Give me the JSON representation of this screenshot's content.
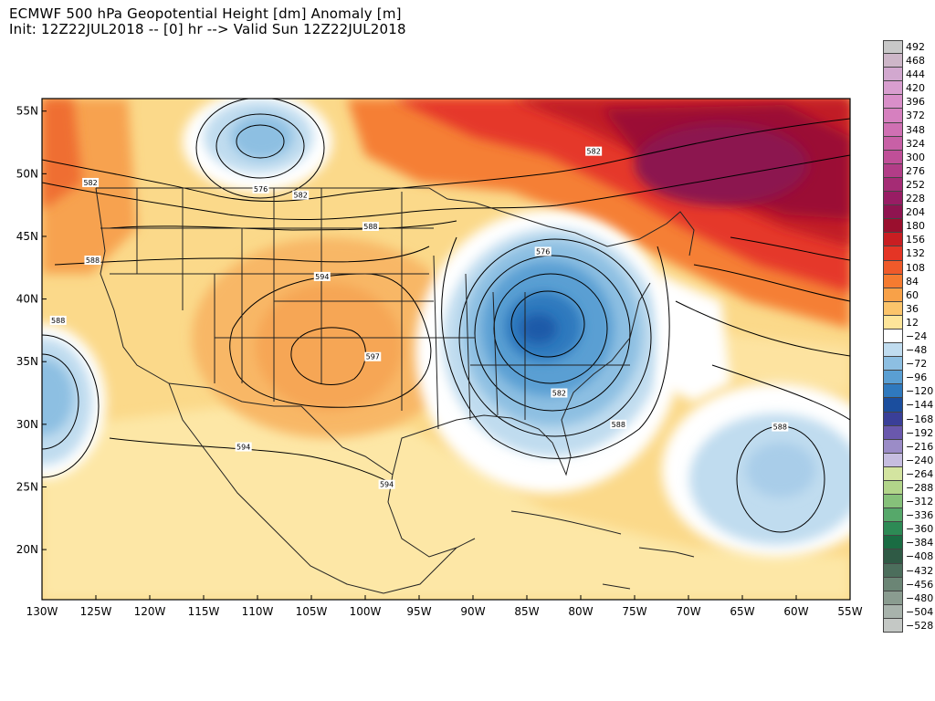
{
  "title": {
    "line1": "ECMWF 500 hPa Geopotential Height [dm] Anomaly [m]",
    "line2": "Init: 12Z22JUL2018 -- [0] hr --> Valid Sun 12Z22JUL2018"
  },
  "map": {
    "lon_range": [
      -130,
      -55
    ],
    "lat_range": [
      16,
      56
    ],
    "lon_ticks": [
      {
        "v": -130,
        "label": "130W"
      },
      {
        "v": -125,
        "label": "125W"
      },
      {
        "v": -120,
        "label": "120W"
      },
      {
        "v": -115,
        "label": "115W"
      },
      {
        "v": -110,
        "label": "110W"
      },
      {
        "v": -105,
        "label": "105W"
      },
      {
        "v": -100,
        "label": "100W"
      },
      {
        "v": -95,
        "label": "95W"
      },
      {
        "v": -90,
        "label": "90W"
      },
      {
        "v": -85,
        "label": "85W"
      },
      {
        "v": -80,
        "label": "80W"
      },
      {
        "v": -75,
        "label": "75W"
      },
      {
        "v": -70,
        "label": "70W"
      },
      {
        "v": -65,
        "label": "65W"
      },
      {
        "v": -60,
        "label": "60W"
      },
      {
        "v": -55,
        "label": "55W"
      }
    ],
    "lat_ticks": [
      {
        "v": 20,
        "label": "20N"
      },
      {
        "v": 25,
        "label": "25N"
      },
      {
        "v": 30,
        "label": "30N"
      },
      {
        "v": 35,
        "label": "35N"
      },
      {
        "v": 40,
        "label": "40N"
      },
      {
        "v": 45,
        "label": "45N"
      },
      {
        "v": 50,
        "label": "50N"
      },
      {
        "v": 55,
        "label": "55N"
      }
    ],
    "contour_labels": [
      {
        "text": "582",
        "lon": -125.5,
        "lat": 49.3
      },
      {
        "text": "576",
        "lon": -109.7,
        "lat": 48.8
      },
      {
        "text": "582",
        "lon": -106.0,
        "lat": 48.3
      },
      {
        "text": "588",
        "lon": -99.5,
        "lat": 45.8
      },
      {
        "text": "588",
        "lon": -125.3,
        "lat": 43.1
      },
      {
        "text": "594",
        "lon": -104.0,
        "lat": 41.8
      },
      {
        "text": "588",
        "lon": -128.5,
        "lat": 38.3
      },
      {
        "text": "597",
        "lon": -99.3,
        "lat": 35.4
      },
      {
        "text": "576",
        "lon": -83.5,
        "lat": 43.8
      },
      {
        "text": "582",
        "lon": -82.0,
        "lat": 32.5
      },
      {
        "text": "588",
        "lon": -76.5,
        "lat": 30.0
      },
      {
        "text": "582",
        "lon": -78.8,
        "lat": 51.8
      },
      {
        "text": "588",
        "lon": -61.5,
        "lat": 29.8
      },
      {
        "text": "594",
        "lon": -111.3,
        "lat": 28.2
      },
      {
        "text": "594",
        "lon": -98.0,
        "lat": 25.2
      }
    ],
    "anomaly_features": [
      {
        "kind": "trough",
        "lon": -110.2,
        "lat": 51.3,
        "max_anom": -72
      },
      {
        "kind": "trough",
        "lon": -85.3,
        "lat": 38.3,
        "max_anom": -108
      },
      {
        "kind": "trough",
        "lon": -61.0,
        "lat": 26.5,
        "max_anom": -48
      },
      {
        "kind": "trough",
        "lon": -129.5,
        "lat": 32.5,
        "max_anom": -72
      },
      {
        "kind": "ridge",
        "lon": -67.0,
        "lat": 50.0,
        "max_anom": 204
      },
      {
        "kind": "ridge",
        "lon": -101.0,
        "lat": 35.0,
        "max_anom": 84
      }
    ]
  },
  "legend": {
    "items": [
      {
        "label": "492",
        "color": "#c8c8c8"
      },
      {
        "label": "468",
        "color": "#cdb6c8"
      },
      {
        "label": "444",
        "color": "#d2a8cf"
      },
      {
        "label": "420",
        "color": "#d89ecf"
      },
      {
        "label": "396",
        "color": "#d98fc9"
      },
      {
        "label": "372",
        "color": "#d680bf"
      },
      {
        "label": "348",
        "color": "#d070b3"
      },
      {
        "label": "324",
        "color": "#c860a6"
      },
      {
        "label": "300",
        "color": "#c04f98"
      },
      {
        "label": "276",
        "color": "#b23d87"
      },
      {
        "label": "252",
        "color": "#a52c75"
      },
      {
        "label": "228",
        "color": "#981d64"
      },
      {
        "label": "204",
        "color": "#8f1450"
      },
      {
        "label": "180",
        "color": "#9a0f2e"
      },
      {
        "label": "156",
        "color": "#c81e22"
      },
      {
        "label": "132",
        "color": "#e43525"
      },
      {
        "label": "108",
        "color": "#ef5a2a"
      },
      {
        "label": "84",
        "color": "#f57b30"
      },
      {
        "label": "60",
        "color": "#f8a148"
      },
      {
        "label": "36",
        "color": "#fbc46b"
      },
      {
        "label": "12",
        "color": "#fde59a"
      },
      {
        "label": "−24",
        "color": "#ffffff"
      },
      {
        "label": "−48",
        "color": "#c0dcef"
      },
      {
        "label": "−72",
        "color": "#8dbfe2"
      },
      {
        "label": "−96",
        "color": "#5a9fd3"
      },
      {
        "label": "−120",
        "color": "#2f79be"
      },
      {
        "label": "−144",
        "color": "#1b4e9e"
      },
      {
        "label": "−168",
        "color": "#3a3f98"
      },
      {
        "label": "−192",
        "color": "#6a58ad"
      },
      {
        "label": "−216",
        "color": "#9b8cc7"
      },
      {
        "label": "−240",
        "color": "#c6bde0"
      },
      {
        "label": "−264",
        "color": "#d3e4a0"
      },
      {
        "label": "−288",
        "color": "#b2d58a"
      },
      {
        "label": "−312",
        "color": "#86c17a"
      },
      {
        "label": "−336",
        "color": "#56a86a"
      },
      {
        "label": "−360",
        "color": "#2d8a55"
      },
      {
        "label": "−384",
        "color": "#1a6c43"
      },
      {
        "label": "−408",
        "color": "#2f5a45"
      },
      {
        "label": "−432",
        "color": "#4c6e5c"
      },
      {
        "label": "−456",
        "color": "#6b8575"
      },
      {
        "label": "−480",
        "color": "#8a9c90"
      },
      {
        "label": "−504",
        "color": "#a8b3ac"
      },
      {
        "label": "−528",
        "color": "#c4c8c5"
      }
    ]
  }
}
